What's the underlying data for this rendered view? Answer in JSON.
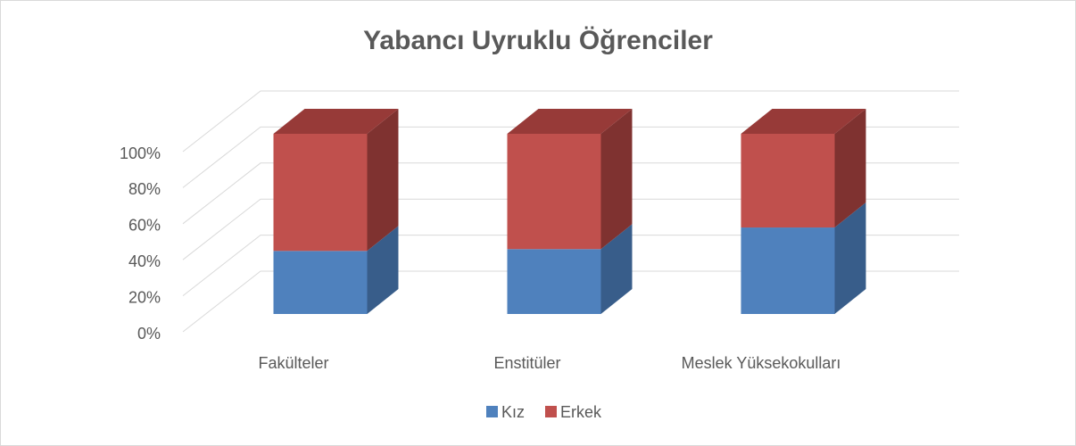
{
  "chart_data": {
    "type": "bar",
    "stacked": true,
    "title": "Yabancı Uyruklu Öğrenciler",
    "categories": [
      "Fakülteler",
      "Enstitüler",
      "Meslek Yüksekokulları"
    ],
    "series": [
      {
        "name": "Kız",
        "color": "#4f81bd",
        "side_color": "#385d8a",
        "top_color": "#4572a8",
        "values": [
          35,
          36,
          48
        ]
      },
      {
        "name": "Erkek",
        "color": "#c0504d",
        "side_color": "#7f3230",
        "top_color": "#973a38",
        "values": [
          65,
          64,
          52
        ]
      }
    ],
    "ylim": [
      0,
      100
    ],
    "yticks": [
      {
        "value": 0,
        "label": "0%"
      },
      {
        "value": 20,
        "label": "20%"
      },
      {
        "value": 40,
        "label": "40%"
      },
      {
        "value": 60,
        "label": "60%"
      },
      {
        "value": 80,
        "label": "80%"
      },
      {
        "value": 100,
        "label": "100%"
      }
    ],
    "grid": true,
    "legend": "bottom"
  }
}
